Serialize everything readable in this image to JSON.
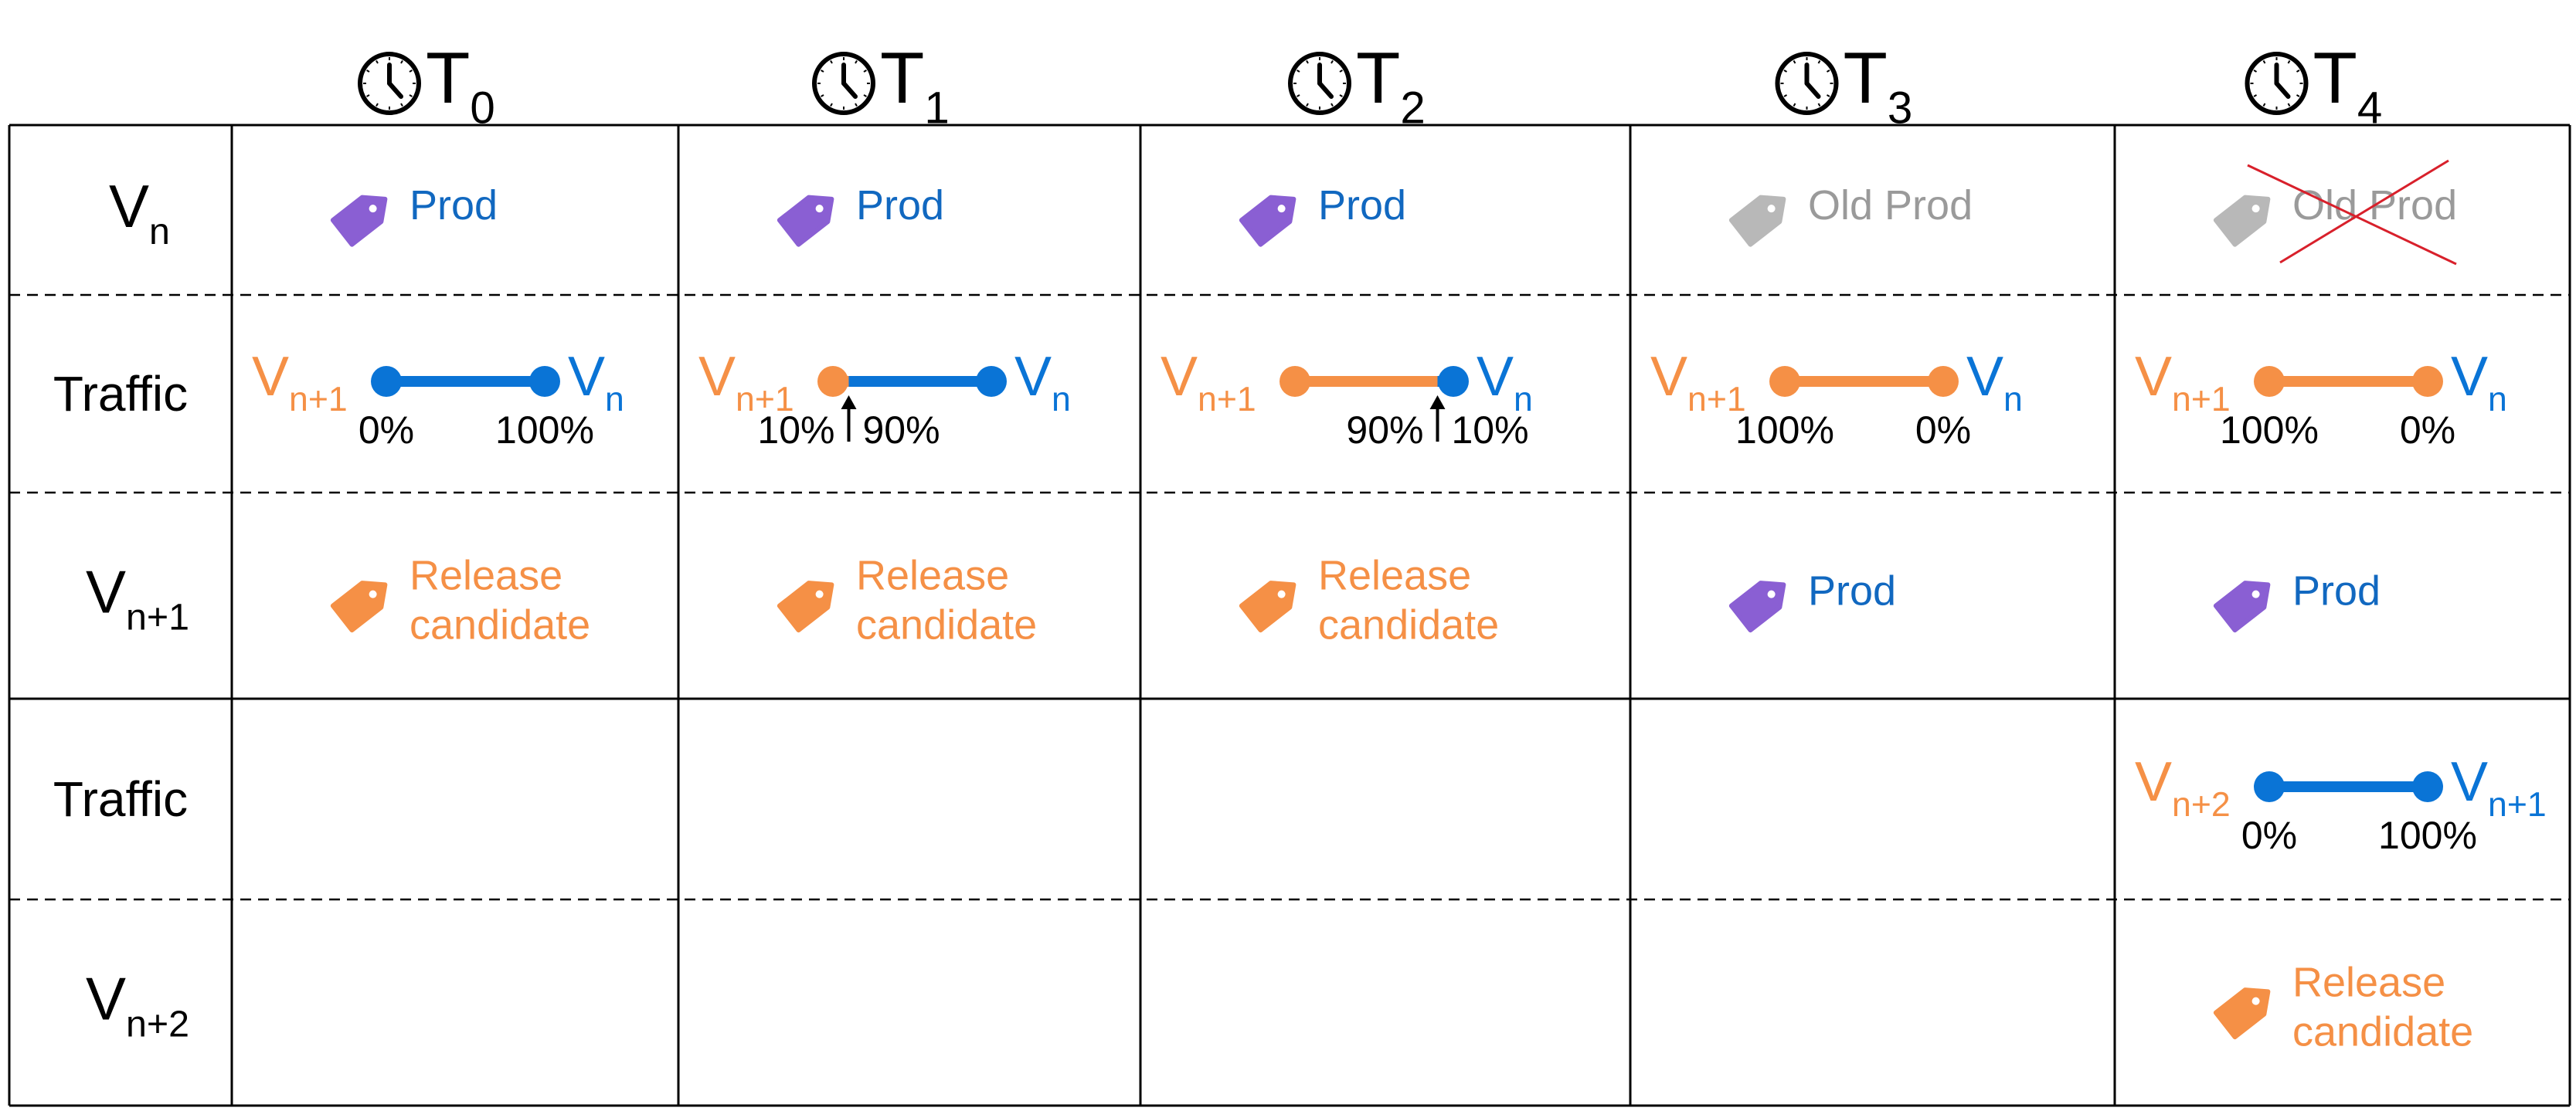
{
  "colors": {
    "line": "#000000",
    "blue": "#0a74d6",
    "blue_text": "#1168c0",
    "orange": "#f59046",
    "purple": "#8a5fd3",
    "gray": "#b8b8b8",
    "gray_text": "#9a9a9a",
    "cross": "#d8202b"
  },
  "icons": {
    "clock": "clock-icon",
    "tag": "tag-icon"
  },
  "columns": [
    {
      "letter": "T",
      "sub": "0"
    },
    {
      "letter": "T",
      "sub": "1"
    },
    {
      "letter": "T",
      "sub": "2"
    },
    {
      "letter": "T",
      "sub": "3"
    },
    {
      "letter": "T",
      "sub": "4"
    }
  ],
  "rows": [
    {
      "id": "vn",
      "main": "V",
      "sub": "n"
    },
    {
      "id": "traffic1",
      "main": "Traffic",
      "sub": ""
    },
    {
      "id": "vn1",
      "main": "V",
      "sub": "n+1"
    },
    {
      "id": "traffic2",
      "main": "Traffic",
      "sub": ""
    },
    {
      "id": "vn2",
      "main": "V",
      "sub": "n+2"
    }
  ],
  "tag_cells": [
    {
      "col": 0,
      "row": 0,
      "kind": "prod",
      "lines": [
        "Prod"
      ],
      "crossed": false
    },
    {
      "col": 1,
      "row": 0,
      "kind": "prod",
      "lines": [
        "Prod"
      ],
      "crossed": false
    },
    {
      "col": 2,
      "row": 0,
      "kind": "prod",
      "lines": [
        "Prod"
      ],
      "crossed": false
    },
    {
      "col": 3,
      "row": 0,
      "kind": "old",
      "lines": [
        "Old Prod"
      ],
      "crossed": false
    },
    {
      "col": 4,
      "row": 0,
      "kind": "old",
      "lines": [
        "Old Prod"
      ],
      "crossed": true
    },
    {
      "col": 0,
      "row": 2,
      "kind": "candidate",
      "lines": [
        "Release",
        "candidate"
      ],
      "crossed": false
    },
    {
      "col": 1,
      "row": 2,
      "kind": "candidate",
      "lines": [
        "Release",
        "candidate"
      ],
      "crossed": false
    },
    {
      "col": 2,
      "row": 2,
      "kind": "candidate",
      "lines": [
        "Release",
        "candidate"
      ],
      "crossed": false
    },
    {
      "col": 3,
      "row": 2,
      "kind": "prod",
      "lines": [
        "Prod"
      ],
      "crossed": false
    },
    {
      "col": 4,
      "row": 2,
      "kind": "prod",
      "lines": [
        "Prod"
      ],
      "crossed": false
    },
    {
      "col": 4,
      "row": 4,
      "kind": "candidate",
      "lines": [
        "Release",
        "candidate"
      ],
      "crossed": false
    }
  ],
  "traffic_cells": [
    {
      "col": 0,
      "row": 1,
      "left": {
        "main": "V",
        "sub": "n+1"
      },
      "right": {
        "main": "V",
        "sub": "n"
      },
      "left_pct": "0%",
      "right_pct": "100%",
      "left_share": 0,
      "arrow": false
    },
    {
      "col": 1,
      "row": 1,
      "left": {
        "main": "V",
        "sub": "n+1"
      },
      "right": {
        "main": "V",
        "sub": "n"
      },
      "left_pct": "10%",
      "right_pct": "90%",
      "left_share": 0.1,
      "arrow": true
    },
    {
      "col": 2,
      "row": 1,
      "left": {
        "main": "V",
        "sub": "n+1"
      },
      "right": {
        "main": "V",
        "sub": "n"
      },
      "left_pct": "90%",
      "right_pct": "10%",
      "left_share": 0.9,
      "arrow": true
    },
    {
      "col": 3,
      "row": 1,
      "left": {
        "main": "V",
        "sub": "n+1"
      },
      "right": {
        "main": "V",
        "sub": "n"
      },
      "left_pct": "100%",
      "right_pct": "0%",
      "left_share": 1,
      "arrow": false
    },
    {
      "col": 4,
      "row": 1,
      "left": {
        "main": "V",
        "sub": "n+1"
      },
      "right": {
        "main": "V",
        "sub": "n"
      },
      "left_pct": "100%",
      "right_pct": "0%",
      "left_share": 1,
      "arrow": false
    },
    {
      "col": 4,
      "row": 3,
      "left": {
        "main": "V",
        "sub": "n+2"
      },
      "right": {
        "main": "V",
        "sub": "n+1"
      },
      "left_pct": "0%",
      "right_pct": "100%",
      "left_share": 0,
      "arrow": false
    }
  ]
}
